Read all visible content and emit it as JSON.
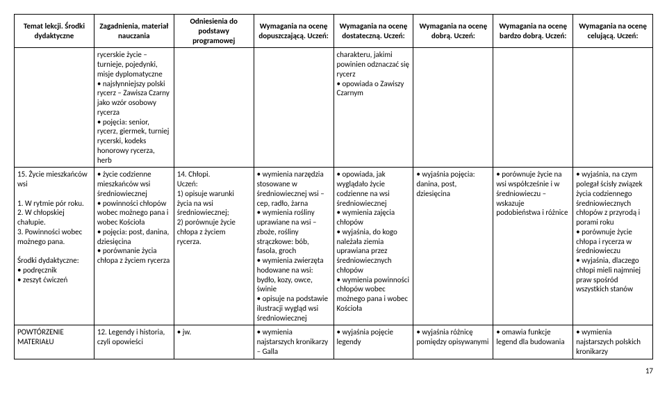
{
  "headers": {
    "col1": "Temat lekcji. Środki dydaktyczne",
    "col2": "Zagadnienia, materiał nauczania",
    "col3": "Odniesienia do podstawy programowej",
    "col4": "Wymagania na ocenę dopuszczającą. Uczeń:",
    "col5": "Wymagania na ocenę dostateczną. Uczeń:",
    "col6": "Wymagania na ocenę dobrą. Uczeń:",
    "col7": "Wymagania na ocenę bardzo dobrą. Uczeń:",
    "col8": "Wymagania na ocenę celującą. Uczeń:"
  },
  "rows": [
    {
      "c1": "",
      "c2": "rycerskie życie – turnieje, pojedynki, misje dyplomatyczne\n• najsłynniejszy polski rycerz – Zawisza Czarny jako wzór osobowy rycerza\n• pojęcia: senior, rycerz, giermek, turniej rycerski, kodeks honorowy rycerza, herb",
      "c3": "",
      "c4": "",
      "c5": "charakteru, jakimi powinien odznaczać się rycerz\n• opowiada o Zawiszy Czarnym",
      "c6": "",
      "c7": "",
      "c8": ""
    },
    {
      "c1": "15. Życie mieszkańców wsi\n\n1. W rytmie pór roku.\n2. W chłopskiej chałupie.\n3. Powinności wobec możnego pana.\n\nŚrodki dydaktyczne:\n• podręcznik\n• zeszyt ćwiczeń",
      "c2": "• życie codzienne mieszkańców wsi średniowiecznej\n• powinności chłopów wobec możnego pana i wobec Kościoła\n• pojęcia: post, danina, dziesięcina\n• porównanie życia chłopa z życiem rycerza",
      "c3": "14. Chłopi.\nUczeń:\n1) opisuje warunki życia na wsi średniowiecznej;\n2) porównuje życie chłopa z życiem rycerza.",
      "c4": "• wymienia narzędzia stosowane w średniowiecznej wsi – cep, radło, żarna\n• wymienia rośliny uprawiane na wsi – zboże, rośliny strączkowe: bób, fasola, groch\n• wymienia zwierzęta hodowane na wsi: bydło, kozy, owce, świnie\n• opisuje na podstawie ilustracji wygląd wsi średniowiecznej",
      "c5": "• opowiada, jak wyglądało życie codzienne na wsi średniowiecznej\n• wymienia zajęcia chłopów\n• wyjaśnia, do kogo należała ziemia uprawiana przez średniowiecznych chłopów\n• wymienia powinności chłopów wobec możnego pana i wobec Kościoła",
      "c6": "• wyjaśnia pojęcia: danina, post, dziesięcina",
      "c7": "• porównuje życie na wsi współcześnie i w średniowieczu – wskazuje podobieństwa i różnice",
      "c8": "• wyjaśnia, na czym polegał ścisły związek życia codziennego średniowiecznych chłopów z przyrodą i porami roku\n• porównuje życie chłopa i rycerza w średniowieczu\n• wyjaśnia, dlaczego chłopi mieli najmniej praw spośród wszystkich stanów"
    },
    {
      "c1": "POWTÓRZENIE MATERIAŁU",
      "c2": "12. Legendy i historia, czyli opowieści",
      "c3": "• jw.",
      "c4": "• wymienia najstarszych kronikarzy – Galla",
      "c5": "• wyjaśnia pojęcie legendy",
      "c6": "• wyjaśnia różnicę pomiędzy opisywanymi",
      "c7": "• omawia funkcje legend dla budowania",
      "c8": "• wymienia najstarszych polskich kronikarzy"
    }
  ],
  "pageNumber": "17"
}
